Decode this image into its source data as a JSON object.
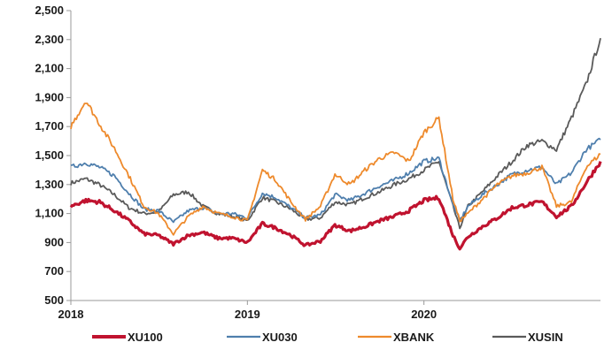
{
  "chart_data": {
    "type": "line",
    "ylim": [
      500,
      2500
    ],
    "y_ticks": [
      "500",
      "700",
      "900",
      "1,100",
      "1,300",
      "1,500",
      "1,700",
      "1,900",
      "2,100",
      "2,300",
      "2,500"
    ],
    "x_ticks": [
      "2018",
      "2019",
      "2020"
    ],
    "x_range": [
      "2018-01-01",
      "2020-12-31"
    ],
    "grid": false,
    "legend_position": "bottom",
    "x": [
      "2018-01-01",
      "2018-02-01",
      "2018-03-01",
      "2018-04-01",
      "2018-05-01",
      "2018-06-01",
      "2018-07-01",
      "2018-08-01",
      "2018-09-01",
      "2018-10-01",
      "2018-11-01",
      "2018-12-01",
      "2019-01-01",
      "2019-02-01",
      "2019-03-01",
      "2019-04-01",
      "2019-05-01",
      "2019-06-01",
      "2019-07-01",
      "2019-08-01",
      "2019-09-01",
      "2019-10-01",
      "2019-11-01",
      "2019-12-01",
      "2020-01-01",
      "2020-02-01",
      "2020-03-01",
      "2020-03-15",
      "2020-04-01",
      "2020-05-01",
      "2020-06-01",
      "2020-07-01",
      "2020-08-01",
      "2020-09-01",
      "2020-10-01",
      "2020-11-01",
      "2020-12-01",
      "2020-12-31"
    ],
    "series": [
      {
        "name": "XU100",
        "color": "#c0132f",
        "values": [
          1150,
          1190,
          1180,
          1120,
          1050,
          960,
          950,
          890,
          950,
          970,
          930,
          930,
          900,
          1030,
          1000,
          950,
          880,
          910,
          1020,
          980,
          1010,
          1050,
          1080,
          1120,
          1190,
          1210,
          950,
          860,
          940,
          1010,
          1070,
          1140,
          1160,
          1180,
          1080,
          1150,
          1310,
          1460
        ]
      },
      {
        "name": "XU030",
        "color": "#4f7fad",
        "values": [
          1420,
          1450,
          1420,
          1360,
          1240,
          1130,
          1120,
          1040,
          1120,
          1140,
          1100,
          1100,
          1070,
          1240,
          1210,
          1140,
          1070,
          1090,
          1230,
          1190,
          1240,
          1290,
          1330,
          1380,
          1460,
          1480,
          1160,
          1050,
          1150,
          1230,
          1300,
          1370,
          1400,
          1420,
          1300,
          1380,
          1540,
          1610
        ]
      },
      {
        "name": "XBANK",
        "color": "#ee8a2c",
        "values": [
          1700,
          1880,
          1720,
          1550,
          1360,
          1150,
          1100,
          960,
          1080,
          1150,
          1100,
          1080,
          1050,
          1400,
          1330,
          1180,
          1060,
          1150,
          1370,
          1300,
          1400,
          1480,
          1520,
          1460,
          1660,
          1760,
          1200,
          1050,
          1100,
          1200,
          1300,
          1360,
          1380,
          1420,
          1150,
          1180,
          1420,
          1510
        ]
      },
      {
        "name": "XUSIN",
        "color": "#5a5a5a",
        "values": [
          1310,
          1340,
          1300,
          1230,
          1140,
          1100,
          1110,
          1230,
          1250,
          1150,
          1100,
          1080,
          1050,
          1210,
          1180,
          1130,
          1060,
          1070,
          1180,
          1160,
          1210,
          1250,
          1300,
          1340,
          1400,
          1460,
          1150,
          1000,
          1150,
          1250,
          1360,
          1460,
          1570,
          1600,
          1540,
          1760,
          1990,
          2310
        ]
      }
    ]
  }
}
